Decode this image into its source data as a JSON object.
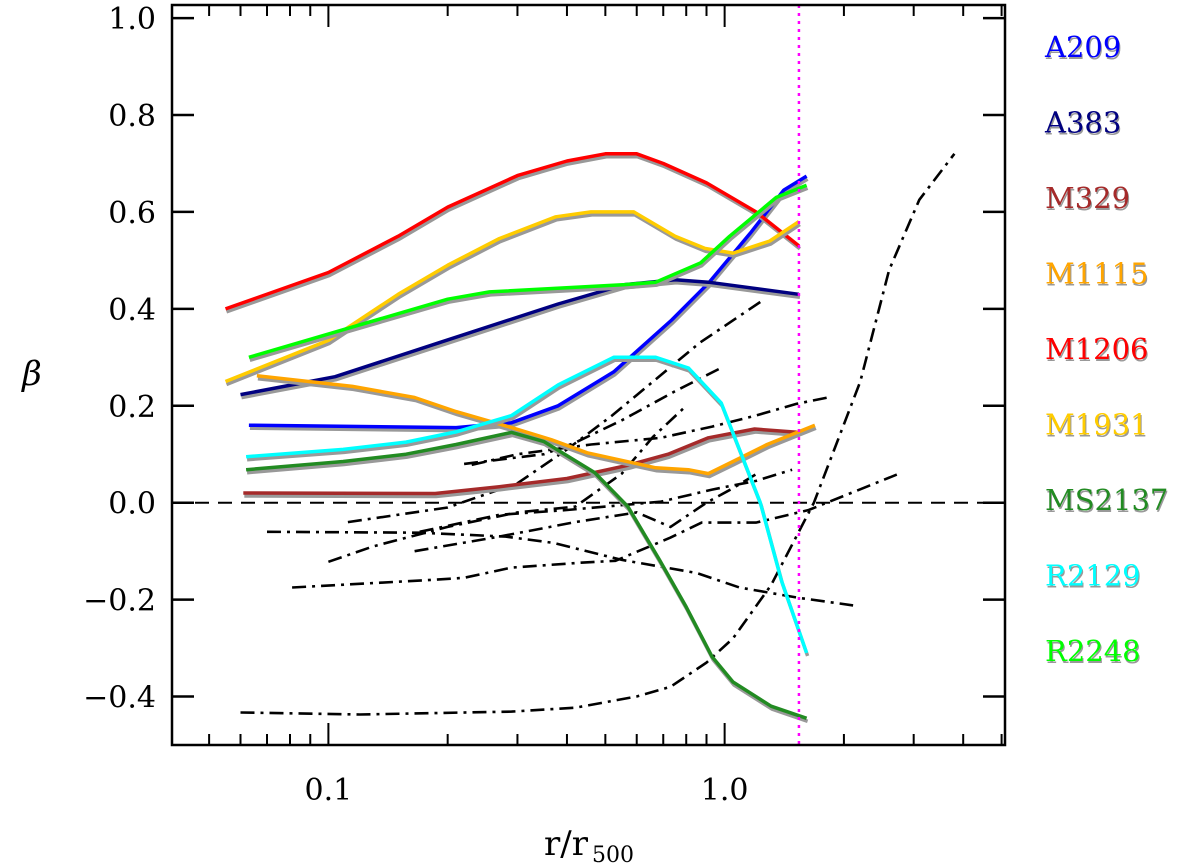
{
  "chart_data": {
    "type": "line",
    "xlabel": "r/r",
    "xlabel_sub": "500",
    "ylabel": "β",
    "xscale": "log",
    "xlim": [
      0.0403,
      5.1
    ],
    "ylim": [
      -0.5,
      1.027
    ],
    "xticks": [
      {
        "value": 0.1,
        "label": "0.1"
      },
      {
        "value": 1.0,
        "label": "1.0"
      }
    ],
    "yticks": [
      {
        "value": 1.0,
        "label": "1.0"
      },
      {
        "value": 0.8,
        "label": "0.8"
      },
      {
        "value": 0.6,
        "label": "0.6"
      },
      {
        "value": 0.4,
        "label": "0.4"
      },
      {
        "value": 0.2,
        "label": "0.2"
      },
      {
        "value": 0.0,
        "label": "0.0"
      },
      {
        "value": -0.2,
        "label": "−0.2"
      },
      {
        "value": -0.4,
        "label": "−0.4"
      }
    ],
    "grid": false,
    "legend_placement": "right, outside",
    "reference_lines": {
      "zero_line": 0.0,
      "zero_style": "dashed",
      "vertical_r": 1.54,
      "vertical_color": "#ff00ff",
      "vertical_style": "dotted"
    },
    "series": [
      {
        "name": "A209",
        "color": "#0000ff",
        "points": [
          [
            0.063,
            0.16
          ],
          [
            0.21,
            0.155
          ],
          [
            0.29,
            0.165
          ],
          [
            0.38,
            0.2
          ],
          [
            0.525,
            0.27
          ],
          [
            0.735,
            0.377
          ],
          [
            0.91,
            0.453
          ],
          [
            1.16,
            0.556
          ],
          [
            1.41,
            0.645
          ],
          [
            1.61,
            0.674
          ]
        ]
      },
      {
        "name": "A383",
        "color": "#000080",
        "points": [
          [
            0.06,
            0.223
          ],
          [
            0.104,
            0.26
          ],
          [
            0.19,
            0.33
          ],
          [
            0.38,
            0.41
          ],
          [
            0.56,
            0.45
          ],
          [
            0.75,
            0.46
          ],
          [
            0.91,
            0.455
          ],
          [
            1.54,
            0.43
          ]
        ]
      },
      {
        "name": "M329",
        "color": "#a52a2a",
        "points": [
          [
            0.061,
            0.02
          ],
          [
            0.186,
            0.019
          ],
          [
            0.27,
            0.033
          ],
          [
            0.4,
            0.05
          ],
          [
            0.575,
            0.078
          ],
          [
            0.72,
            0.1
          ],
          [
            0.91,
            0.134
          ],
          [
            1.19,
            0.152
          ],
          [
            1.54,
            0.145
          ]
        ]
      },
      {
        "name": "M1115",
        "color": "#ffa500",
        "points": [
          [
            0.066,
            0.262
          ],
          [
            0.115,
            0.24
          ],
          [
            0.165,
            0.217
          ],
          [
            0.21,
            0.188
          ],
          [
            0.29,
            0.155
          ],
          [
            0.365,
            0.13
          ],
          [
            0.45,
            0.103
          ],
          [
            0.67,
            0.072
          ],
          [
            0.81,
            0.068
          ],
          [
            0.91,
            0.06
          ],
          [
            1.05,
            0.085
          ],
          [
            1.28,
            0.12
          ],
          [
            1.69,
            0.16
          ]
        ]
      },
      {
        "name": "M1206",
        "color": "#ff0000",
        "points": [
          [
            0.055,
            0.4
          ],
          [
            0.1,
            0.475
          ],
          [
            0.15,
            0.55
          ],
          [
            0.2,
            0.61
          ],
          [
            0.3,
            0.675
          ],
          [
            0.4,
            0.705
          ],
          [
            0.5,
            0.72
          ],
          [
            0.6,
            0.72
          ],
          [
            0.7,
            0.7
          ],
          [
            0.9,
            0.66
          ],
          [
            1.2,
            0.6
          ],
          [
            1.54,
            0.53
          ]
        ]
      },
      {
        "name": "M1931",
        "color": "#ffcc00",
        "points": [
          [
            0.055,
            0.25
          ],
          [
            0.1,
            0.335
          ],
          [
            0.15,
            0.43
          ],
          [
            0.2,
            0.49
          ],
          [
            0.27,
            0.545
          ],
          [
            0.375,
            0.59
          ],
          [
            0.46,
            0.6
          ],
          [
            0.59,
            0.6
          ],
          [
            0.75,
            0.55
          ],
          [
            0.89,
            0.525
          ],
          [
            1.05,
            0.515
          ],
          [
            1.3,
            0.54
          ],
          [
            1.54,
            0.58
          ]
        ]
      },
      {
        "name": "MS2137",
        "color": "#228b22",
        "points": [
          [
            0.062,
            0.068
          ],
          [
            0.109,
            0.085
          ],
          [
            0.157,
            0.1
          ],
          [
            0.21,
            0.12
          ],
          [
            0.29,
            0.145
          ],
          [
            0.35,
            0.126
          ],
          [
            0.47,
            0.062
          ],
          [
            0.57,
            -0.008
          ],
          [
            0.685,
            -0.118
          ],
          [
            0.8,
            -0.215
          ],
          [
            0.93,
            -0.318
          ],
          [
            1.05,
            -0.37
          ],
          [
            1.31,
            -0.42
          ],
          [
            1.61,
            -0.445
          ]
        ]
      },
      {
        "name": "R2129",
        "color": "#00ffff",
        "points": [
          [
            0.062,
            0.095
          ],
          [
            0.109,
            0.11
          ],
          [
            0.157,
            0.125
          ],
          [
            0.21,
            0.146
          ],
          [
            0.29,
            0.18
          ],
          [
            0.38,
            0.243
          ],
          [
            0.525,
            0.3
          ],
          [
            0.67,
            0.3
          ],
          [
            0.81,
            0.278
          ],
          [
            0.98,
            0.206
          ],
          [
            1.23,
            0.0
          ],
          [
            1.39,
            -0.16
          ],
          [
            1.61,
            -0.31
          ]
        ]
      },
      {
        "name": "R2248",
        "color": "#00ff00",
        "points": [
          [
            0.063,
            0.3
          ],
          [
            0.109,
            0.357
          ],
          [
            0.2,
            0.42
          ],
          [
            0.255,
            0.435
          ],
          [
            0.56,
            0.45
          ],
          [
            0.67,
            0.455
          ],
          [
            0.87,
            0.495
          ],
          [
            1.03,
            0.55
          ],
          [
            1.35,
            0.63
          ],
          [
            1.61,
            0.655
          ]
        ]
      }
    ],
    "comparison_series": [
      {
        "style": "dash-dot",
        "color": "#000000",
        "points": [
          [
            0.06,
            -0.433
          ],
          [
            0.12,
            -0.437
          ],
          [
            0.29,
            -0.431
          ],
          [
            0.42,
            -0.423
          ],
          [
            0.6,
            -0.4
          ],
          [
            0.73,
            -0.38
          ],
          [
            0.9,
            -0.33
          ],
          [
            1.05,
            -0.28
          ],
          [
            1.31,
            -0.17
          ],
          [
            1.68,
            0.0
          ],
          [
            2.2,
            0.25
          ],
          [
            2.6,
            0.48
          ],
          [
            3.1,
            0.625
          ],
          [
            3.8,
            0.72
          ]
        ]
      },
      {
        "style": "dash-dot",
        "color": "#000000",
        "points": [
          [
            0.07,
            -0.06
          ],
          [
            0.17,
            -0.062
          ],
          [
            0.28,
            -0.07
          ],
          [
            0.37,
            -0.083
          ],
          [
            0.55,
            -0.118
          ],
          [
            0.85,
            -0.145
          ],
          [
            1.09,
            -0.175
          ],
          [
            1.53,
            -0.196
          ],
          [
            2.11,
            -0.212
          ]
        ]
      },
      {
        "style": "dash-dot",
        "color": "#000000",
        "points": [
          [
            0.081,
            -0.175
          ],
          [
            0.186,
            -0.159
          ],
          [
            0.22,
            -0.155
          ],
          [
            0.29,
            -0.134
          ],
          [
            0.43,
            -0.124
          ],
          [
            0.53,
            -0.12
          ],
          [
            0.73,
            -0.072
          ],
          [
            0.875,
            -0.041
          ],
          [
            1.2,
            -0.041
          ],
          [
            1.63,
            -0.015
          ],
          [
            2.72,
            0.058
          ]
        ]
      },
      {
        "style": "dash-dot",
        "color": "#000000",
        "points": [
          [
            0.112,
            -0.04
          ],
          [
            0.2,
            -0.01
          ],
          [
            0.3,
            0.04
          ],
          [
            0.4,
            0.11
          ],
          [
            0.52,
            0.18
          ],
          [
            0.66,
            0.25
          ],
          [
            0.865,
            0.33
          ],
          [
            1.26,
            0.42
          ]
        ]
      },
      {
        "style": "dash-dot",
        "color": "#000000",
        "points": [
          [
            0.22,
            0.08
          ],
          [
            0.35,
            0.1
          ],
          [
            0.42,
            0.124
          ],
          [
            0.55,
            0.17
          ],
          [
            0.75,
            0.23
          ],
          [
            0.99,
            0.28
          ]
        ]
      },
      {
        "style": "dash-dot",
        "color": "#000000",
        "points": [
          [
            0.23,
            0.078
          ],
          [
            0.3,
            0.1
          ],
          [
            0.46,
            0.12
          ],
          [
            0.69,
            0.134
          ],
          [
            0.93,
            0.157
          ],
          [
            1.2,
            0.18
          ],
          [
            1.52,
            0.204
          ],
          [
            1.82,
            0.217
          ]
        ]
      },
      {
        "style": "dash-dot",
        "color": "#000000",
        "points": [
          [
            0.17,
            -0.06
          ],
          [
            0.27,
            -0.025
          ],
          [
            0.4,
            -0.015
          ],
          [
            0.69,
            0.002
          ],
          [
            0.93,
            0.027
          ],
          [
            1.2,
            0.045
          ],
          [
            1.48,
            0.068
          ]
        ]
      },
      {
        "style": "dash-dot",
        "color": "#000000",
        "points": [
          [
            0.1,
            -0.122
          ],
          [
            0.13,
            -0.09
          ],
          [
            0.2,
            -0.05
          ],
          [
            0.3,
            -0.02
          ],
          [
            0.42,
            -0.008
          ],
          [
            0.55,
            0.06
          ],
          [
            0.66,
            0.136
          ],
          [
            0.8,
            0.2
          ]
        ]
      },
      {
        "style": "dash-dot",
        "color": "#000000",
        "points": [
          [
            0.165,
            -0.1
          ],
          [
            0.27,
            -0.07
          ],
          [
            0.42,
            -0.04
          ],
          [
            0.6,
            -0.02
          ],
          [
            0.73,
            -0.05
          ],
          [
            0.9,
            0.0
          ],
          [
            1.05,
            0.03
          ],
          [
            1.23,
            0.064
          ]
        ]
      }
    ]
  }
}
